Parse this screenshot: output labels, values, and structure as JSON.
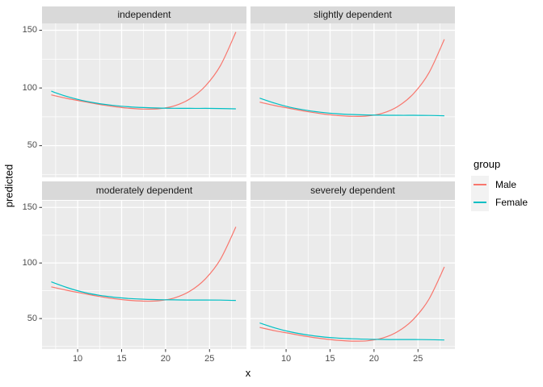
{
  "figure": {
    "xlabel": "x",
    "ylabel": "predicted",
    "legend": {
      "title": "group",
      "position": "right",
      "items": [
        {
          "label": "Male",
          "color": "#F8766D"
        },
        {
          "label": "Female",
          "color": "#00BFC4"
        }
      ]
    }
  },
  "chart_data": {
    "type": "line",
    "facet_layout": "2x2",
    "x": [
      7,
      8.75,
      10.5,
      12.25,
      14,
      15.75,
      17.5,
      19.25,
      21,
      22.75,
      24.5,
      26.25,
      28
    ],
    "xlabel": "x",
    "ylabel": "predicted",
    "xticks": [
      10,
      15,
      20,
      25
    ],
    "yticks": [
      150,
      100,
      50
    ],
    "xticks_minor": [
      7.5,
      12.5,
      17.5,
      22.5,
      27.5
    ],
    "yticks_minor": [
      125,
      75,
      25
    ],
    "xlim": [
      5.95,
      29.2
    ],
    "ylim": [
      22.5,
      156
    ],
    "grid": true,
    "facets": [
      {
        "title": "independent",
        "series": [
          {
            "name": "Male",
            "color": "#F8766D",
            "values": [
              94,
              91,
              88.5,
              86,
              84,
              82.5,
              81.7,
              82,
              84.5,
              90.5,
              101.5,
              119.5,
              148.5
            ]
          },
          {
            "name": "Female",
            "color": "#00BFC4",
            "values": [
              97.2,
              92.7,
              89.2,
              86.7,
              84.9,
              83.7,
              83,
              82.6,
              82.4,
              82.3,
              82.3,
              82.2,
              81.9
            ]
          }
        ]
      },
      {
        "title": "slightly dependent",
        "series": [
          {
            "name": "Male",
            "color": "#F8766D",
            "values": [
              87.7,
              84.7,
              82.2,
              79.7,
              77.7,
              76.2,
              75.4,
              75.7,
              78.2,
              84.2,
              95.2,
              113.2,
              142.2
            ]
          },
          {
            "name": "Female",
            "color": "#00BFC4",
            "values": [
              91.2,
              86.7,
              83.2,
              80.7,
              78.9,
              77.7,
              77,
              76.6,
              76.4,
              76.3,
              76.3,
              76.2,
              75.9
            ]
          }
        ]
      },
      {
        "title": "moderately dependent",
        "series": [
          {
            "name": "Male",
            "color": "#F8766D",
            "values": [
              78.5,
              75.5,
              72.8,
              70.2,
              68,
              66.5,
              65.7,
              66,
              68.5,
              74.5,
              85.5,
              103.5,
              132.5
            ]
          },
          {
            "name": "Female",
            "color": "#00BFC4",
            "values": [
              83,
              78,
              74,
              71.2,
              69.3,
              68.1,
              67.4,
              67,
              66.8,
              66.7,
              66.7,
              66.6,
              66.3
            ]
          }
        ]
      },
      {
        "title": "severely dependent",
        "series": [
          {
            "name": "Male",
            "color": "#F8766D",
            "values": [
              42,
              39,
              36.5,
              34,
              32,
              30.5,
              29.7,
              30,
              32.5,
              38.5,
              49.5,
              67.5,
              96.5
            ]
          },
          {
            "name": "Female",
            "color": "#00BFC4",
            "values": [
              46,
              41.5,
              38,
              35.5,
              33.7,
              32.5,
              31.8,
              31.4,
              31.2,
              31.1,
              31.1,
              31,
              30.7
            ]
          }
        ]
      }
    ]
  },
  "colors": {
    "male": "#F8766D",
    "female": "#00BFC4",
    "panel_bg": "#EBEBEB",
    "strip_bg": "#D9D9D9",
    "grid": "#FFFFFF",
    "tick_text": "#4D4D4D",
    "tick_mark": "#333333",
    "strip_text": "#1A1A1A",
    "legend_key_bg": "#F2F2F2"
  }
}
